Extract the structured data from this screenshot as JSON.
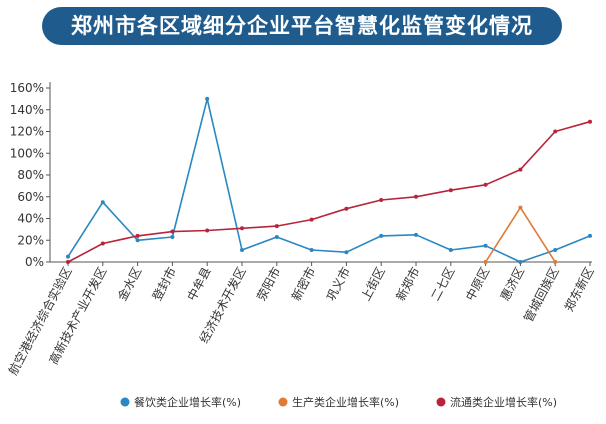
{
  "chart_data": {
    "type": "line",
    "title": "郑州市各区域细分企业平台智慧化监管变化情况",
    "categories": [
      "航空港经济综合实验区",
      "高新技术产业开发区",
      "金水区",
      "登封市",
      "中牟县",
      "经济技术开发区",
      "荥阳市",
      "新密市",
      "巩义市",
      "上街区",
      "新郑市",
      "二七区",
      "中原区",
      "惠济区",
      "管城回族区",
      "郑东新区"
    ],
    "y_ticks": [
      "0%",
      "20%",
      "40%",
      "60%",
      "80%",
      "100%",
      "120%",
      "140%",
      "160%"
    ],
    "ylim": [
      0,
      160
    ],
    "series": [
      {
        "name": "餐饮类企业增长率(%)",
        "color": "#2a87c1",
        "values": [
          5,
          55,
          20,
          23,
          150,
          11,
          23,
          11,
          9,
          24,
          25,
          11,
          15,
          0,
          11,
          24
        ]
      },
      {
        "name": "生产类企业增长率(%)",
        "color": "#e07a35",
        "values": [
          null,
          null,
          null,
          null,
          null,
          null,
          null,
          null,
          null,
          null,
          null,
          null,
          0,
          50,
          0,
          null
        ]
      },
      {
        "name": "流通类企业增长率(%)",
        "color": "#b8243a",
        "values": [
          0,
          17,
          24,
          28,
          29,
          31,
          33,
          39,
          49,
          57,
          60,
          66,
          71,
          85,
          120,
          129
        ]
      }
    ],
    "grid": false,
    "legend_position": "bottom"
  }
}
